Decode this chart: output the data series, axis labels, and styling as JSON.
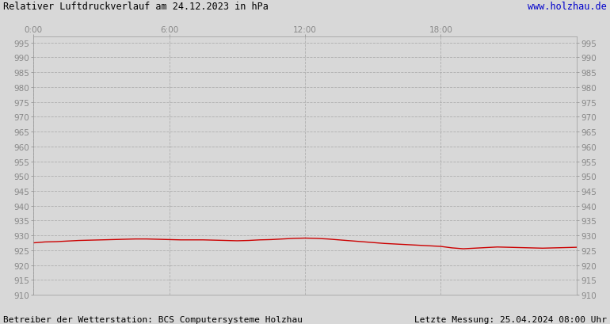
{
  "title": "Relativer Luftdruckverlauf am 24.12.2023 in hPa",
  "url": "www.holzhau.de",
  "footer_left": "Betreiber der Wetterstation: BCS Computersysteme Holzhau",
  "footer_right": "Letzte Messung: 25.04.2024 08:00 Uhr",
  "xlim": [
    0,
    1440
  ],
  "ylim": [
    910,
    997
  ],
  "yticks": [
    910,
    915,
    920,
    925,
    930,
    935,
    940,
    945,
    950,
    955,
    960,
    965,
    970,
    975,
    980,
    985,
    990,
    995
  ],
  "xticks_minutes": [
    0,
    360,
    720,
    1080
  ],
  "xtick_labels": [
    "0:00",
    "6:00",
    "12:00",
    "18:00"
  ],
  "bg_color": "#d8d8d8",
  "plot_bg_color": "#d8d8d8",
  "grid_color": "#aaaaaa",
  "line_color": "#cc0000",
  "title_color": "#000000",
  "url_color": "#0000cc",
  "footer_color": "#000000",
  "tick_label_color": "#888888",
  "pressure_data": [
    [
      0,
      927.5
    ],
    [
      30,
      927.8
    ],
    [
      60,
      927.9
    ],
    [
      90,
      928.1
    ],
    [
      120,
      928.3
    ],
    [
      150,
      928.4
    ],
    [
      180,
      928.5
    ],
    [
      210,
      928.6
    ],
    [
      240,
      928.7
    ],
    [
      270,
      928.8
    ],
    [
      300,
      928.8
    ],
    [
      330,
      928.7
    ],
    [
      360,
      928.6
    ],
    [
      390,
      928.5
    ],
    [
      420,
      928.5
    ],
    [
      450,
      928.5
    ],
    [
      480,
      928.4
    ],
    [
      510,
      928.3
    ],
    [
      540,
      928.2
    ],
    [
      570,
      928.3
    ],
    [
      600,
      928.5
    ],
    [
      630,
      928.6
    ],
    [
      660,
      928.8
    ],
    [
      690,
      929.0
    ],
    [
      720,
      929.1
    ],
    [
      750,
      929.0
    ],
    [
      780,
      928.8
    ],
    [
      810,
      928.5
    ],
    [
      840,
      928.2
    ],
    [
      870,
      927.9
    ],
    [
      900,
      927.6
    ],
    [
      930,
      927.3
    ],
    [
      960,
      927.1
    ],
    [
      990,
      926.9
    ],
    [
      1020,
      926.7
    ],
    [
      1050,
      926.5
    ],
    [
      1080,
      926.3
    ],
    [
      1110,
      925.8
    ],
    [
      1140,
      925.5
    ],
    [
      1170,
      925.7
    ],
    [
      1200,
      925.9
    ],
    [
      1230,
      926.1
    ],
    [
      1260,
      926.0
    ],
    [
      1290,
      925.9
    ],
    [
      1320,
      925.8
    ],
    [
      1350,
      925.7
    ],
    [
      1380,
      925.8
    ],
    [
      1410,
      925.9
    ],
    [
      1440,
      926.0
    ]
  ]
}
